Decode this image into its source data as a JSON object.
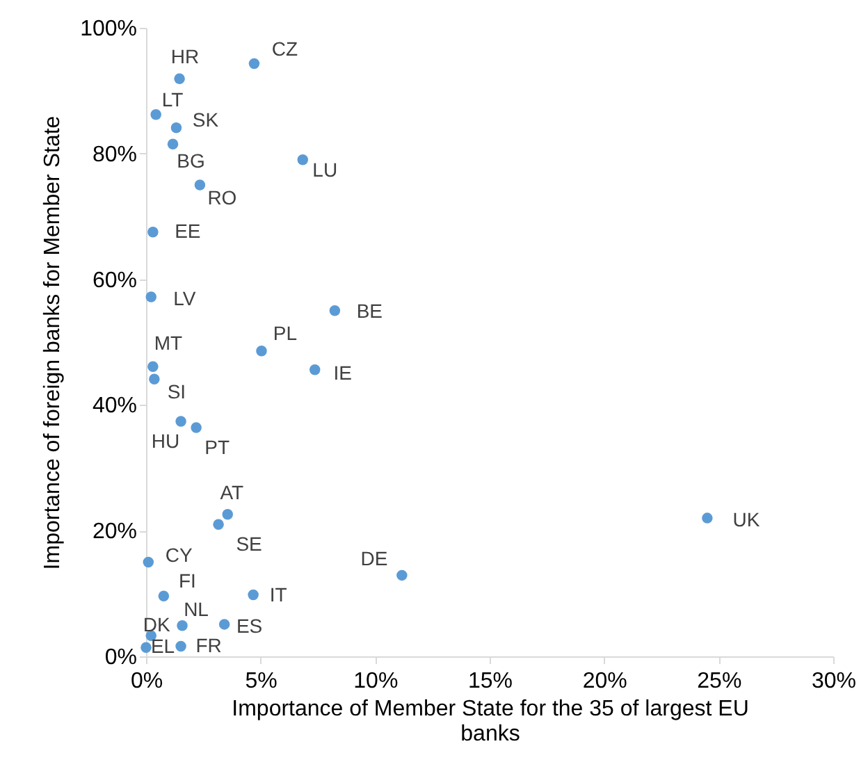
{
  "chart_data": {
    "type": "scatter",
    "xlabel": "Importance of Member State for the 35 of largest EU banks",
    "ylabel": "Importance of foreign banks for Member State",
    "xlim": [
      0,
      30
    ],
    "xticks": [
      {
        "value": 0,
        "label": "0%"
      },
      {
        "value": 5,
        "label": "5%"
      },
      {
        "value": 10,
        "label": "10%"
      },
      {
        "value": 15,
        "label": "15%"
      },
      {
        "value": 20,
        "label": "20%"
      },
      {
        "value": 25,
        "label": "25%"
      },
      {
        "value": 30,
        "label": "30%"
      }
    ],
    "ylim": [
      0,
      100
    ],
    "yticks": [
      {
        "value": 0,
        "label": "0%"
      },
      {
        "value": 20,
        "label": "20%"
      },
      {
        "value": 40,
        "label": "40%"
      },
      {
        "value": 60,
        "label": "60%"
      },
      {
        "value": 80,
        "label": "80%"
      },
      {
        "value": 100,
        "label": "100%"
      }
    ],
    "grid": false,
    "marker": "circle",
    "series": [
      {
        "color": "#5b9bd5",
        "x": [
          1.46,
          4.72,
          0.43,
          1.32,
          1.17,
          6.84,
          2.35,
          0.3,
          0.22,
          8.24,
          5.04,
          7.37,
          0.3,
          0.36,
          1.52,
          2.19,
          3.56,
          3.16,
          0.1,
          0.77,
          4.68,
          1.58,
          3.42,
          0.22,
          0,
          1.52,
          11.17,
          24.5
        ],
        "values": [
          91.9,
          94.3,
          86.2,
          84.1,
          81.5,
          79,
          75,
          67.5,
          57.2,
          55,
          48.6,
          45.6,
          46.1,
          44.1,
          37.4,
          36.4,
          22.6,
          21,
          15,
          9.6,
          9.8,
          4.9,
          5.1,
          3.3,
          1.4,
          1.6,
          12.9,
          22
        ]
      }
    ],
    "annotations": [
      {
        "text": "HR",
        "x": 1.46,
        "y": 91.9
      },
      {
        "text": "CZ",
        "x": 4.72,
        "y": 94.3
      },
      {
        "text": "LT",
        "x": 0.43,
        "y": 86.2
      },
      {
        "text": "SK",
        "x": 1.32,
        "y": 84.1
      },
      {
        "text": "BG",
        "x": 1.17,
        "y": 81.5
      },
      {
        "text": "LU",
        "x": 6.84,
        "y": 79
      },
      {
        "text": "RO",
        "x": 2.35,
        "y": 75
      },
      {
        "text": "EE",
        "x": 0.3,
        "y": 67.5
      },
      {
        "text": "LV",
        "x": 0.22,
        "y": 57.2
      },
      {
        "text": "BE",
        "x": 8.24,
        "y": 55
      },
      {
        "text": "PL",
        "x": 5.04,
        "y": 48.6
      },
      {
        "text": "IE",
        "x": 7.37,
        "y": 45.6
      },
      {
        "text": "MT",
        "x": 0.3,
        "y": 46.1
      },
      {
        "text": "SI",
        "x": 0.36,
        "y": 44.1
      },
      {
        "text": "HU",
        "x": 1.52,
        "y": 37.4
      },
      {
        "text": "PT",
        "x": 2.19,
        "y": 36.4
      },
      {
        "text": "AT",
        "x": 3.56,
        "y": 22.6
      },
      {
        "text": "SE",
        "x": 3.16,
        "y": 21
      },
      {
        "text": "CY",
        "x": 0.1,
        "y": 15
      },
      {
        "text": "FI",
        "x": 0.77,
        "y": 9.6
      },
      {
        "text": "IT",
        "x": 4.68,
        "y": 9.8
      },
      {
        "text": "NL",
        "x": 1.58,
        "y": 4.9
      },
      {
        "text": "ES",
        "x": 3.42,
        "y": 5.1
      },
      {
        "text": "DK",
        "x": 0.22,
        "y": 3.3
      },
      {
        "text": "EL",
        "x": 0,
        "y": 1.4
      },
      {
        "text": "FR",
        "x": 1.52,
        "y": 1.6
      },
      {
        "text": "DE",
        "x": 11.17,
        "y": 12.9
      },
      {
        "text": "UK",
        "x": 24.5,
        "y": 22
      }
    ]
  }
}
